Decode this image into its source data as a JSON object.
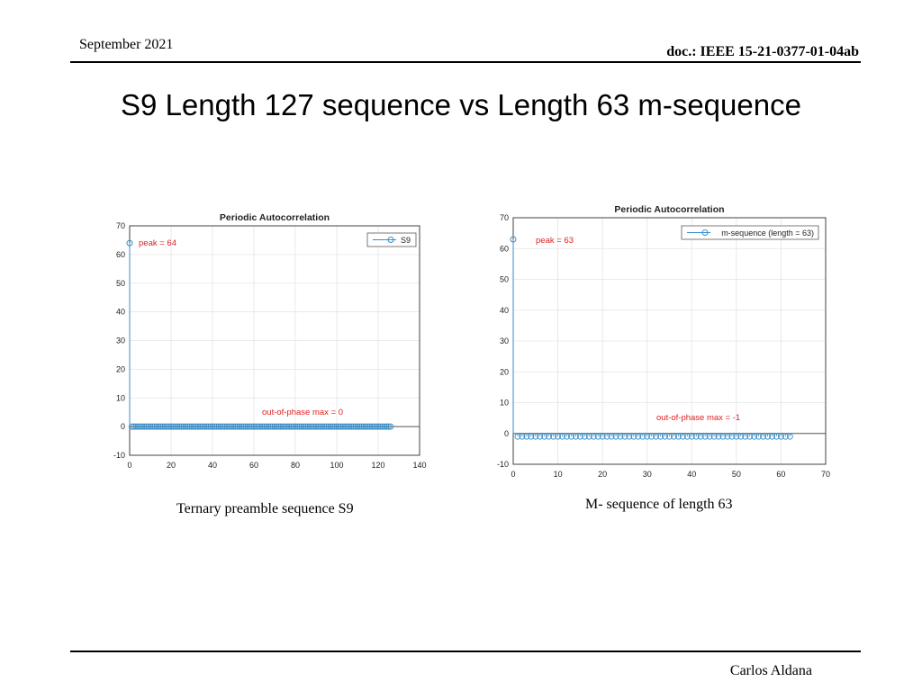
{
  "header": {
    "date": "September 2021",
    "doc_id": "doc.: IEEE 15-21-0377-01-04ab"
  },
  "slide_title": "S9 Length 127 sequence vs Length 63 m-sequence",
  "captions": {
    "left": "Ternary preamble sequence S9",
    "right": "M- sequence of length 63"
  },
  "footer": {
    "author": "Carlos Aldana"
  },
  "colors": {
    "series": "#3a8fc9",
    "annotation": "#e02020",
    "grid": "#e4e4e4",
    "baseline": "#555555"
  },
  "chart_data": [
    {
      "type": "stem",
      "title": "Periodic Autocorrelation",
      "xlim": [
        0,
        140
      ],
      "ylim": [
        -10,
        70
      ],
      "xticks": [
        0,
        20,
        40,
        60,
        80,
        100,
        120,
        140
      ],
      "yticks": [
        -10,
        0,
        10,
        20,
        30,
        40,
        50,
        60,
        70
      ],
      "grid": true,
      "legend_position": "top-right",
      "series": [
        {
          "name": "S9",
          "peak": {
            "x": 0,
            "y": 64
          },
          "rest": {
            "from": 1,
            "to": 126,
            "y": 0
          }
        }
      ],
      "annotations": {
        "peak": "peak = 64",
        "out_of_phase": "out-of-phase max = 0"
      }
    },
    {
      "type": "stem",
      "title": "Periodic Autocorrelation",
      "xlim": [
        0,
        70
      ],
      "ylim": [
        -10,
        70
      ],
      "xticks": [
        0,
        10,
        20,
        30,
        40,
        50,
        60,
        70
      ],
      "yticks": [
        -10,
        0,
        10,
        20,
        30,
        40,
        50,
        60,
        70
      ],
      "grid": true,
      "legend_position": "top-right",
      "series": [
        {
          "name": "m-sequence (length = 63)",
          "peak": {
            "x": 0,
            "y": 63
          },
          "rest": {
            "from": 1,
            "to": 62,
            "y": -1
          }
        }
      ],
      "annotations": {
        "peak": "peak = 63",
        "out_of_phase": "out-of-phase max = -1"
      }
    }
  ]
}
